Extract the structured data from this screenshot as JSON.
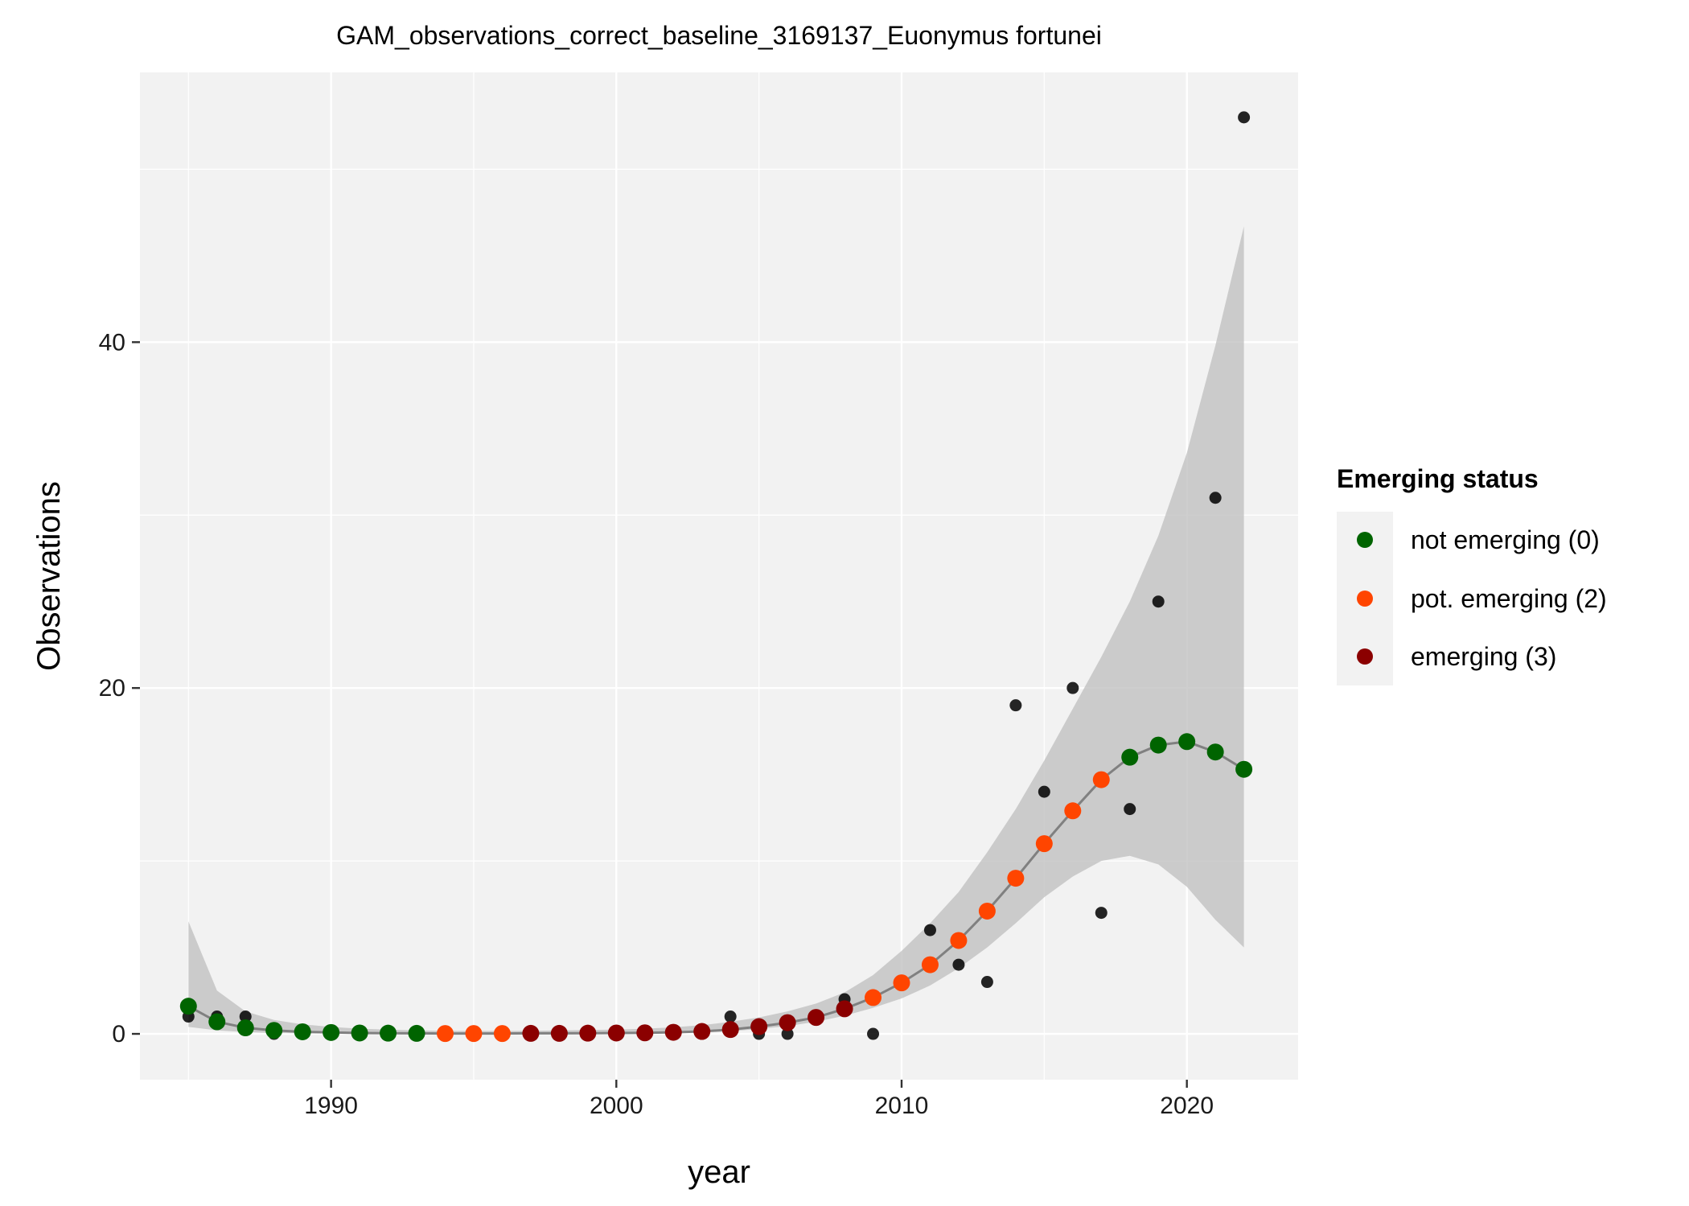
{
  "chart_data": {
    "type": "scatter",
    "title": "GAM_observations_correct_baseline_3169137_Euonymus fortunei",
    "xlabel": "year",
    "ylabel": "Observations",
    "xlim": [
      1983.3,
      2023.9
    ],
    "ylim": [
      -2.65,
      55.6
    ],
    "x_ticks": [
      1990,
      2000,
      2010,
      2020
    ],
    "y_ticks": [
      0,
      20,
      40
    ],
    "x_tick_labels": [
      "1990",
      "2000",
      "2010",
      "2020"
    ],
    "y_tick_labels": [
      "0",
      "20",
      "40"
    ],
    "grid": true,
    "legend": {
      "title": "Emerging status",
      "position": "right",
      "entries": [
        {
          "label": "not emerging (0)",
          "color": "#006400"
        },
        {
          "label": "pot. emerging (2)",
          "color": "#ff4500"
        },
        {
          "label": "emerging (3)",
          "color": "#8b0000"
        }
      ]
    },
    "colors": {
      "not_emerging": "#006400",
      "pot_emerging": "#ff4500",
      "emerging": "#8b0000",
      "observed": "#000000",
      "ribbon": "#bebebe",
      "line": "#808080",
      "panel": "#f2f2f2"
    },
    "series": [
      {
        "name": "observed",
        "kind": "points",
        "x": [
          1985,
          1986,
          1987,
          1988,
          1989,
          1990,
          1991,
          1992,
          1993,
          1994,
          1995,
          1996,
          1997,
          1998,
          1999,
          2000,
          2001,
          2002,
          2003,
          2004,
          2005,
          2006,
          2007,
          2008,
          2009,
          2010,
          2011,
          2012,
          2013,
          2014,
          2015,
          2016,
          2017,
          2018,
          2019,
          2020,
          2021,
          2022
        ],
        "values": [
          1,
          1,
          1,
          0,
          0,
          0,
          0,
          0,
          0,
          0,
          0,
          0,
          0,
          0,
          0,
          0,
          0,
          0,
          0,
          1,
          0,
          0,
          1,
          2,
          0,
          3,
          6,
          4,
          3,
          19,
          14,
          20,
          7,
          13,
          25,
          17,
          31,
          53
        ]
      },
      {
        "name": "gam_fit",
        "kind": "line+ribbon",
        "x": [
          1985,
          1986,
          1987,
          1988,
          1989,
          1990,
          1991,
          1992,
          1993,
          1994,
          1995,
          1996,
          1997,
          1998,
          1999,
          2000,
          2001,
          2002,
          2003,
          2004,
          2005,
          2006,
          2007,
          2008,
          2009,
          2010,
          2011,
          2012,
          2013,
          2014,
          2015,
          2016,
          2017,
          2018,
          2019,
          2020,
          2021,
          2022
        ],
        "values": [
          1.6,
          0.7,
          0.35,
          0.2,
          0.12,
          0.08,
          0.05,
          0.04,
          0.03,
          0.02,
          0.02,
          0.02,
          0.03,
          0.03,
          0.04,
          0.05,
          0.06,
          0.09,
          0.14,
          0.25,
          0.42,
          0.65,
          0.95,
          1.45,
          2.1,
          2.95,
          4.0,
          5.4,
          7.1,
          9.0,
          11.0,
          12.9,
          14.7,
          16.0,
          16.7,
          16.9,
          16.3,
          15.3
        ],
        "lower": [
          0.4,
          0.2,
          0.1,
          0.05,
          0.03,
          0.02,
          0.01,
          0.01,
          0.01,
          0.01,
          0.01,
          0.01,
          0.01,
          0.01,
          0.02,
          0.02,
          0.03,
          0.05,
          0.08,
          0.15,
          0.28,
          0.45,
          0.7,
          1.05,
          1.5,
          2.05,
          2.8,
          3.8,
          5.0,
          6.4,
          7.9,
          9.1,
          10.0,
          10.3,
          9.8,
          8.5,
          6.6,
          5.0
        ],
        "upper": [
          6.5,
          2.5,
          1.3,
          0.8,
          0.55,
          0.4,
          0.3,
          0.25,
          0.2,
          0.18,
          0.17,
          0.17,
          0.18,
          0.2,
          0.22,
          0.25,
          0.3,
          0.38,
          0.5,
          0.7,
          0.95,
          1.3,
          1.75,
          2.4,
          3.4,
          4.8,
          6.4,
          8.2,
          10.5,
          13.0,
          15.8,
          18.8,
          21.8,
          25.0,
          28.8,
          33.6,
          39.8,
          46.7
        ],
        "status": [
          0,
          0,
          0,
          0,
          0,
          0,
          0,
          0,
          0,
          2,
          2,
          2,
          3,
          3,
          3,
          3,
          3,
          3,
          3,
          3,
          3,
          3,
          3,
          3,
          2,
          2,
          2,
          2,
          2,
          2,
          2,
          2,
          2,
          0,
          0,
          0,
          0,
          0
        ]
      }
    ]
  }
}
